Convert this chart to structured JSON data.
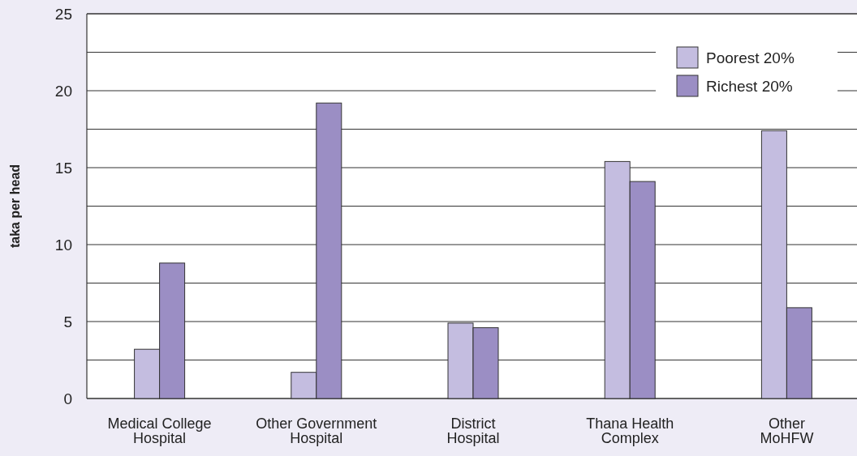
{
  "chart_data": {
    "type": "bar",
    "ylabel": "taka per head",
    "categories": [
      "Medical College\nHospital",
      "Other Government\nHospital",
      "District\nHospital",
      "Thana Health\nComplex",
      "Other\nMoHFW"
    ],
    "series": [
      {
        "name": "Poorest 20%",
        "color": "#c4bde0",
        "values": [
          3.2,
          1.7,
          4.9,
          15.4,
          17.4
        ]
      },
      {
        "name": "Richest 20%",
        "color": "#9b8ec4",
        "values": [
          8.8,
          19.2,
          4.6,
          14.1,
          5.9
        ]
      }
    ],
    "ylim": [
      0,
      25
    ],
    "yticks": [
      0,
      {
        "value": 2.5,
        "label": null
      },
      5,
      {
        "value": 7.5,
        "label": null
      },
      10,
      {
        "value": 12.5,
        "label": null
      },
      15,
      {
        "value": 17.5,
        "label": null
      },
      20,
      {
        "value": 22.5,
        "label": null
      },
      25
    ],
    "grid": "y",
    "legend": "top right"
  }
}
